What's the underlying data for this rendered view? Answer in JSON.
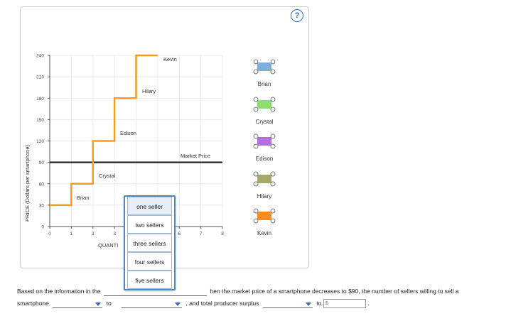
{
  "help": {
    "symbol": "?"
  },
  "chart": {
    "y_axis_label": "PRICE (Dollars per smartphone)",
    "x_axis_label_visible": "QUANTI",
    "y_ticks": [
      "240",
      "210",
      "180",
      "150",
      "120",
      "90",
      "60",
      "30",
      "0"
    ],
    "x_ticks": [
      "0",
      "1",
      "2",
      "3",
      "6",
      "7",
      "8"
    ],
    "market_price_label": "Market Price",
    "sellers": [
      {
        "name": "Brian",
        "cost": 30
      },
      {
        "name": "Crystal",
        "cost": 60
      },
      {
        "name": "Edison",
        "cost": 120
      },
      {
        "name": "Hilary",
        "cost": 180
      },
      {
        "name": "Kevin",
        "cost": 240
      }
    ]
  },
  "chart_data": {
    "type": "line",
    "title": "",
    "xlabel": "QUANTI",
    "ylabel": "PRICE (Dollars per smartphone)",
    "xlim": [
      0,
      8
    ],
    "ylim": [
      0,
      240
    ],
    "series": [
      {
        "name": "",
        "x": [
          0,
          1,
          1,
          2,
          2,
          3,
          3,
          4,
          4,
          5
        ],
        "values": [
          30,
          30,
          60,
          60,
          120,
          120,
          180,
          180,
          240,
          240
        ]
      }
    ],
    "market_price": 90
  },
  "legend": {
    "items": [
      {
        "label": "Brian",
        "color": "#7faedb",
        "icon": "connector-shape-icon"
      },
      {
        "label": "Crystal",
        "color": "#8fdc70",
        "icon": "connector-shape-icon"
      },
      {
        "label": "Edison",
        "color": "#b46fdc",
        "icon": "connector-shape-icon"
      },
      {
        "label": "Hilary",
        "color": "#a8a868",
        "icon": "connector-shape-icon"
      },
      {
        "label": "Kevin",
        "color": "#ff8c1a",
        "icon": "connector-shape-icon"
      }
    ]
  },
  "dropdown": {
    "options": [
      "one seller",
      "two sellers",
      "three sellers",
      "four sellers",
      "five sellers"
    ]
  },
  "question": {
    "part1": "Based on the information in the",
    "part2": "hen the market price of a smartphone decreases to $90, the number of sellers willing to sell a",
    "part3": "smartphone",
    "to1": "to",
    "part4": ", and total producer surplus",
    "to2": "to",
    "dollar": "$",
    "end": "."
  }
}
